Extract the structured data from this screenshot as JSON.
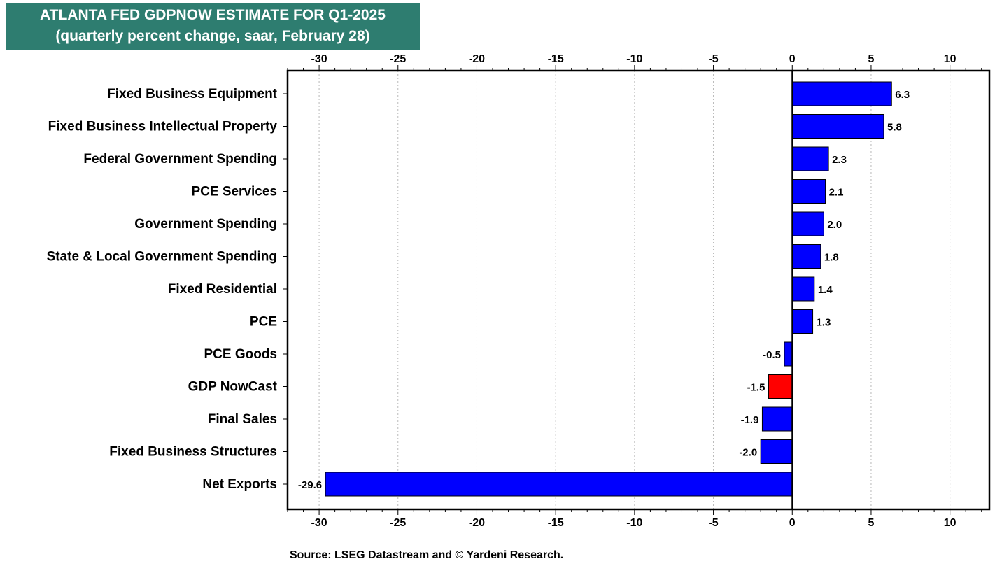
{
  "chart_data": {
    "type": "bar",
    "orientation": "horizontal",
    "title": "ATLANTA FED GDPNOW ESTIMATE FOR Q1-2025",
    "subtitle": "(quarterly percent change, saar, February 28)",
    "categories": [
      "Fixed Business Equipment",
      "Fixed Business Intellectual Property",
      "Federal Government Spending",
      "PCE Services",
      "Government Spending",
      "State & Local Government Spending",
      "Fixed Residential",
      "PCE",
      "PCE Goods",
      "GDP NowCast",
      "Final Sales",
      "Fixed Business Structures",
      "Net Exports"
    ],
    "values": [
      6.3,
      5.8,
      2.3,
      2.1,
      2.0,
      1.8,
      1.4,
      1.3,
      -0.5,
      -1.5,
      -1.9,
      -2.0,
      -29.6
    ],
    "value_labels": [
      "6.3",
      "5.8",
      "2.3",
      "2.1",
      "2.0",
      "1.8",
      "1.4",
      "1.3",
      "-0.5",
      "-1.5",
      "-1.9",
      "-2.0",
      "-29.6"
    ],
    "bar_colors": [
      "#0000ff",
      "#0000ff",
      "#0000ff",
      "#0000ff",
      "#0000ff",
      "#0000ff",
      "#0000ff",
      "#0000ff",
      "#0000ff",
      "#ff0000",
      "#0000ff",
      "#0000ff",
      "#0000ff"
    ],
    "xlim": [
      -32,
      12.5
    ],
    "xticks": [
      -30,
      -25,
      -20,
      -15,
      -10,
      -5,
      0,
      5,
      10
    ],
    "xtick_labels": [
      "-30",
      "-25",
      "-20",
      "-15",
      "-10",
      "-5",
      "0",
      "5",
      "10"
    ],
    "grid": "vertical dotted",
    "xlabel": "",
    "ylabel": ""
  },
  "source": "Source: LSEG Datastream and © Yardeni Research.",
  "colors": {
    "title_bg": "#2e7d70",
    "bar": "#0000ff",
    "highlight": "#ff0000"
  }
}
